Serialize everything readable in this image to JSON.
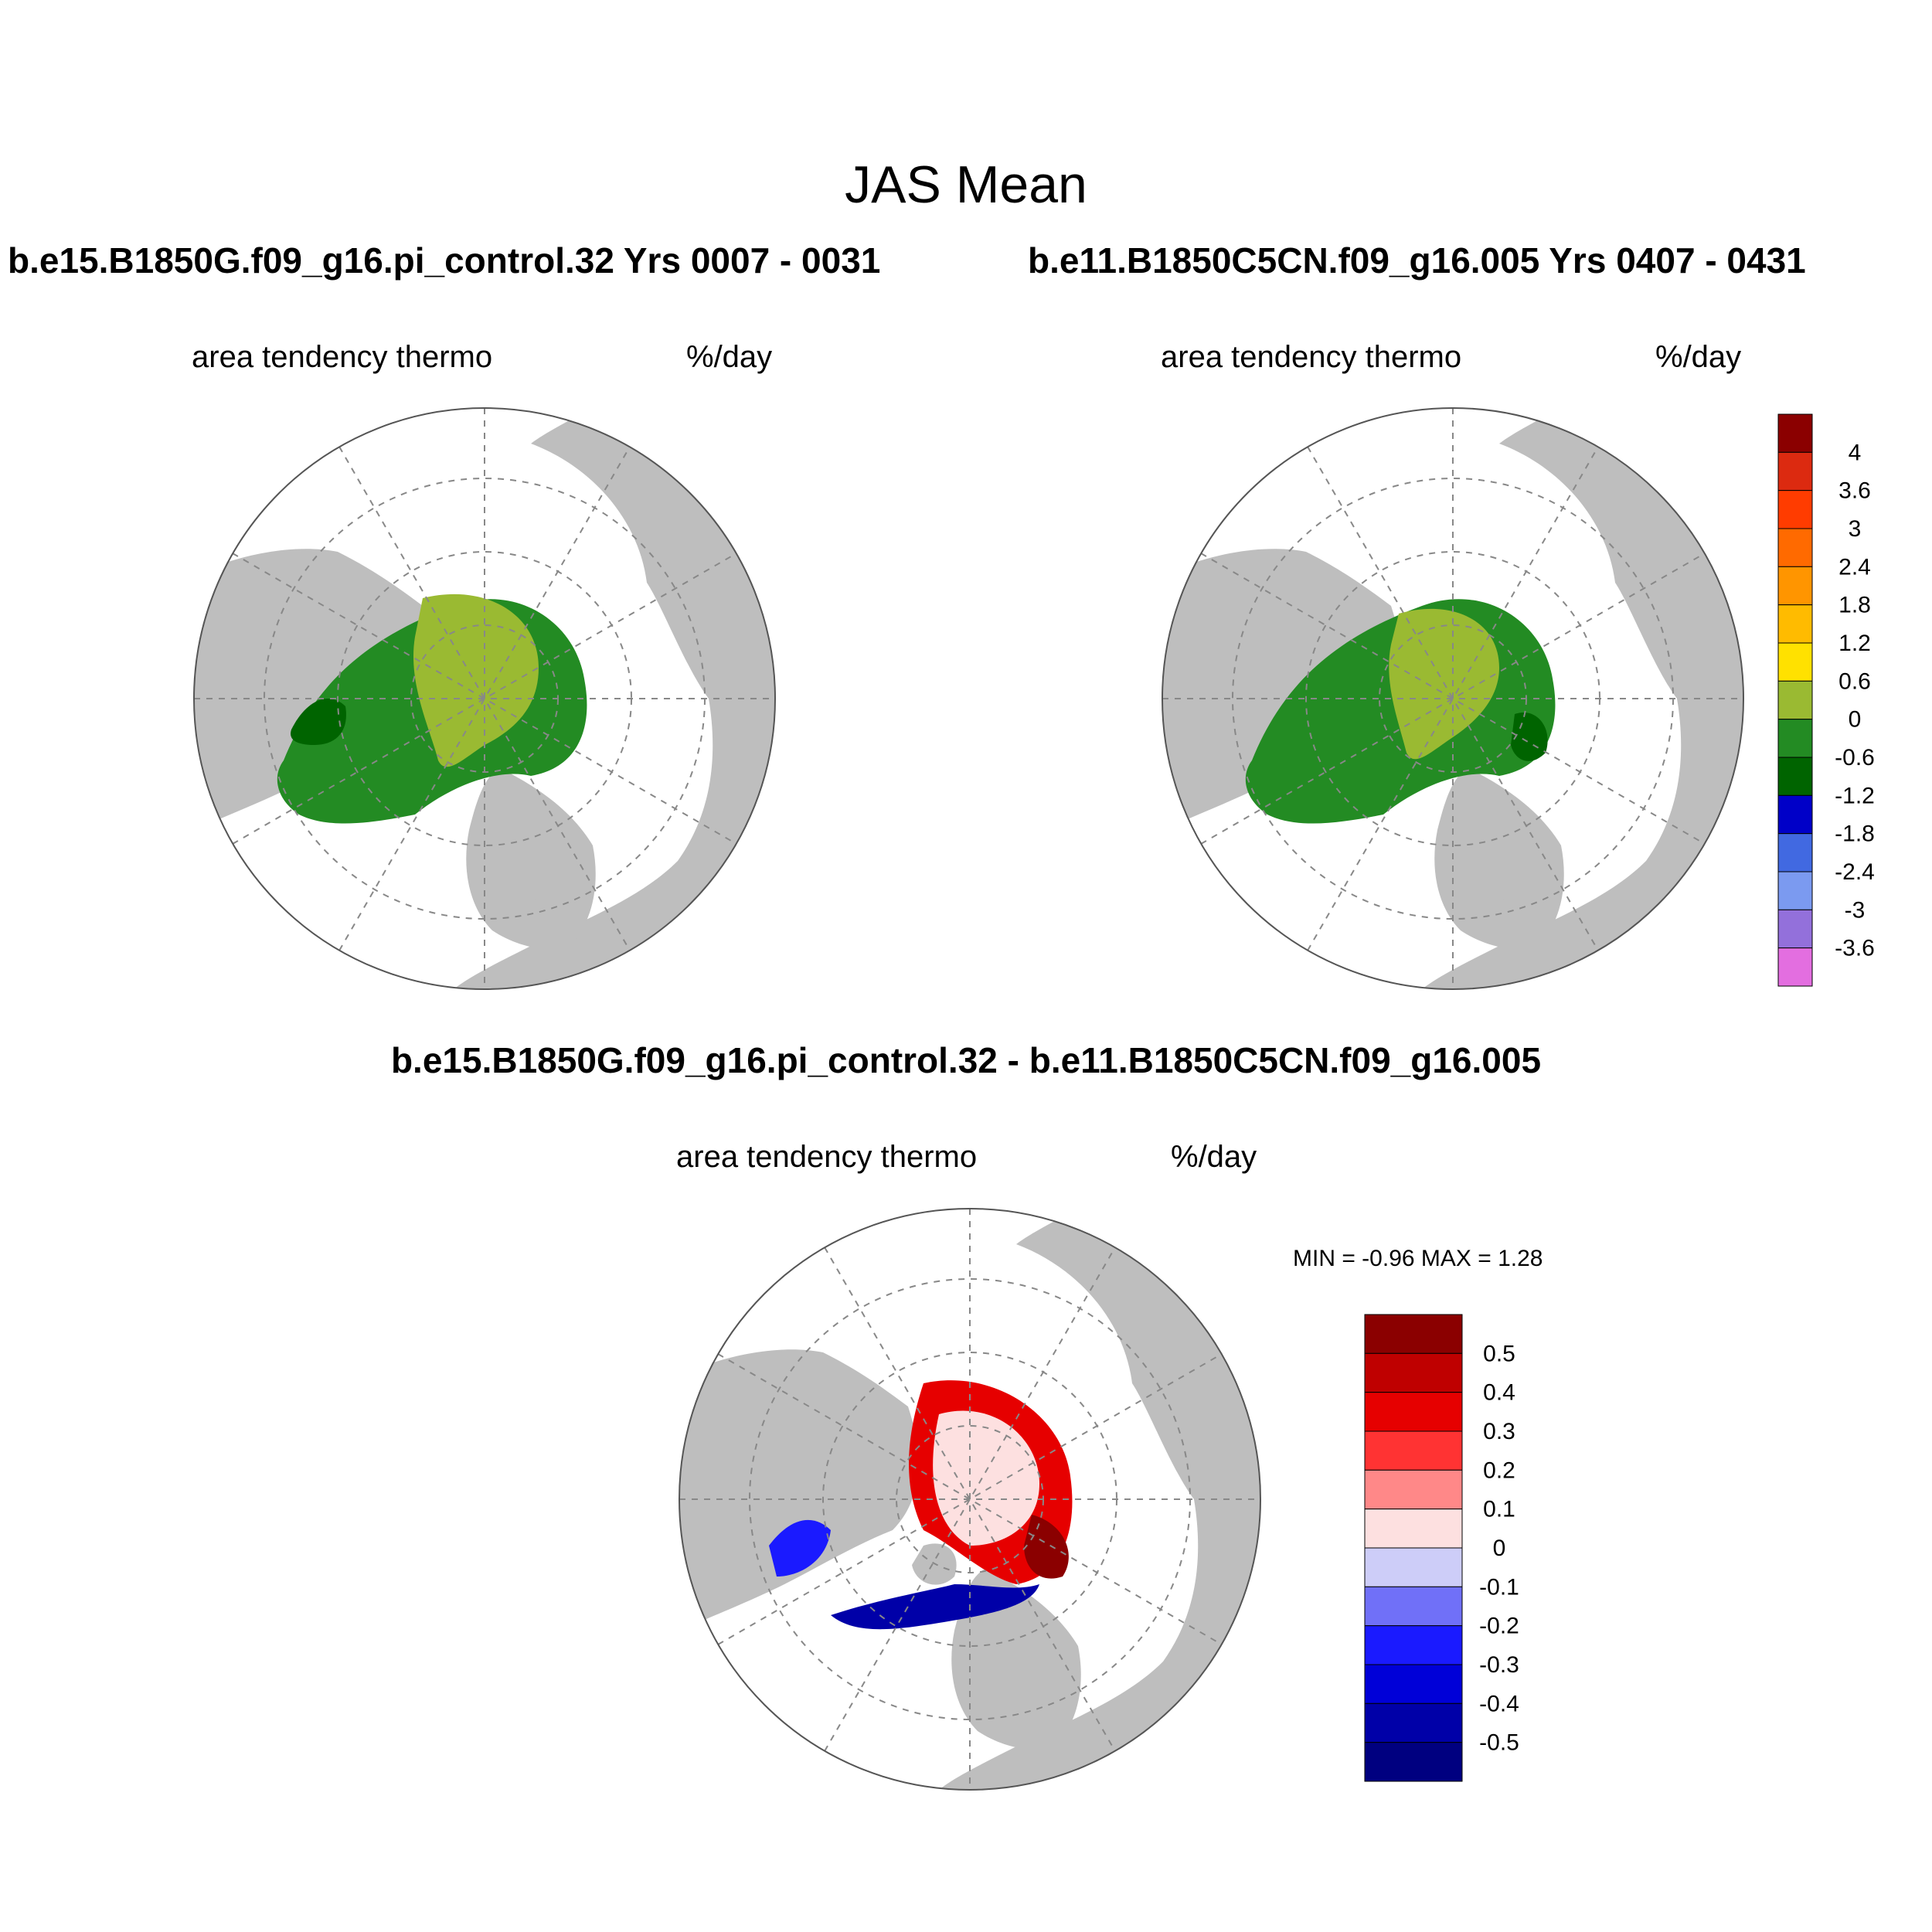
{
  "title": "JAS Mean",
  "panels": {
    "left": {
      "case": "b.e15.B1850G.f09_g16.pi_control.32  Yrs 0007 - 0031",
      "variable": "area tendency thermo",
      "units": "%/day"
    },
    "right": {
      "case": "b.e11.B1850C5CN.f09_g16.005  Yrs 0407 - 0431",
      "variable": "area tendency thermo",
      "units": "%/day"
    },
    "diff": {
      "case": "b.e15.B1850G.f09_g16.pi_control.32 - b.e11.B1850C5CN.f09_g16.005",
      "variable": "area tendency thermo",
      "units": "%/day",
      "minmax": "MIN =  -0.96 MAX =   1.28"
    }
  },
  "colorbar_top": {
    "labels": [
      "4",
      "3.6",
      "3",
      "2.4",
      "1.8",
      "1.2",
      "0.6",
      "0",
      "-0.6",
      "-1.2",
      "-1.8",
      "-2.4",
      "-3",
      "-3.6"
    ],
    "colors": [
      "#8b0000",
      "#dc2a10",
      "#ff3c00",
      "#ff6a00",
      "#ff9500",
      "#ffbb00",
      "#ffe100",
      "#9aba32",
      "#238b23",
      "#006400",
      "#0000c8",
      "#4169e1",
      "#7b9af0",
      "#9370db",
      "#e36ee0"
    ]
  },
  "colorbar_diff": {
    "labels": [
      "0.5",
      "0.4",
      "0.3",
      "0.2",
      "0.1",
      "0",
      "-0.1",
      "-0.2",
      "-0.3",
      "-0.4",
      "-0.5"
    ],
    "colors": [
      "#8b0000",
      "#bf0000",
      "#e60000",
      "#ff3333",
      "#ff8888",
      "#fde0e0",
      "#cdcdf8",
      "#7070f8",
      "#1a1aff",
      "#0000d8",
      "#0000a8",
      "#000080"
    ]
  }
}
